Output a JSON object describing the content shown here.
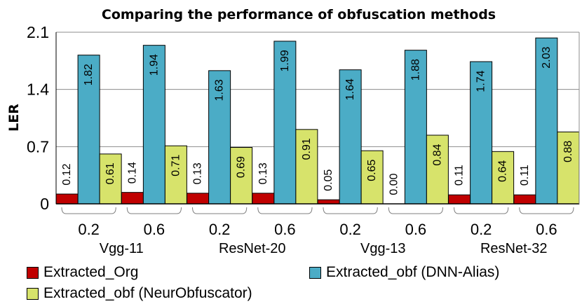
{
  "chart_data": {
    "type": "bar",
    "title": "Comparing the performance of obfuscation methods",
    "ylabel": "LER",
    "xlabel": "",
    "ylim": [
      0,
      2.1
    ],
    "yticks": [
      "0",
      "0.7",
      "1.4",
      "2.1"
    ],
    "ytick_values": [
      0,
      0.7,
      1.4,
      2.1
    ],
    "categories": [
      "0.2",
      "0.6",
      "0.2",
      "0.6",
      "0.2",
      "0.6",
      "0.2",
      "0.6"
    ],
    "groups": [
      "Vgg-11",
      "ResNet-20",
      "Vgg-13",
      "ResNet-32"
    ],
    "series": [
      {
        "name": "Extracted_Org",
        "color": "#c00000",
        "values": [
          0.12,
          0.14,
          0.13,
          0.13,
          0.05,
          0.0,
          0.11,
          0.11
        ],
        "labels": [
          "0.12",
          "0.14",
          "0.13",
          "0.13",
          "0.05",
          "0.00",
          "0.11",
          "0.11"
        ]
      },
      {
        "name": "Extracted_obf (DNN-Alias)",
        "color": "#4bacc6",
        "values": [
          1.82,
          1.94,
          1.63,
          1.99,
          1.64,
          1.88,
          1.74,
          2.03
        ],
        "labels": [
          "1.82",
          "1.94",
          "1.63",
          "1.99",
          "1.64",
          "1.88",
          "1.74",
          "2.03"
        ]
      },
      {
        "name": "Extracted_obf (NeurObfuscator)",
        "color": "#d7e36b",
        "values": [
          0.61,
          0.71,
          0.69,
          0.91,
          0.65,
          0.84,
          0.64,
          0.88
        ],
        "labels": [
          "0.61",
          "0.71",
          "0.69",
          "0.91",
          "0.65",
          "0.84",
          "0.64",
          "0.88"
        ]
      }
    ],
    "legend_position": "bottom"
  }
}
